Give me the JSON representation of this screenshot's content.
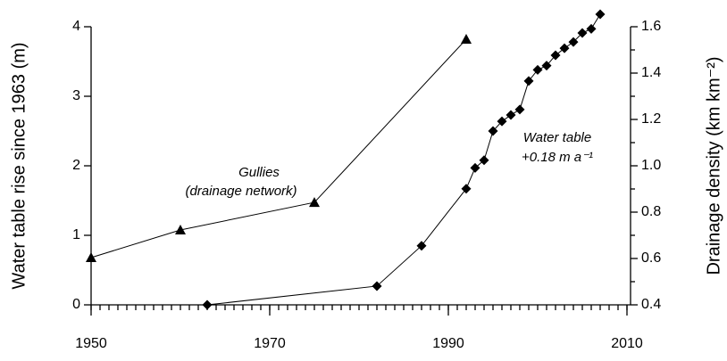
{
  "chart_data": {
    "type": "line",
    "y_label": "Water table rise since 1963 (m)",
    "y2_label": "Drainage density (km km⁻²)",
    "annotations": [
      "Gullies",
      "(drainage network)",
      "Water table",
      "+0.18 m a⁻¹"
    ],
    "xlim": [
      1950,
      2010.4
    ],
    "xticks": [
      1950,
      1970,
      1990,
      2010
    ],
    "ylim": [
      0,
      4
    ],
    "yticks": [
      0,
      1,
      2,
      3,
      4
    ],
    "y2lim": [
      0.4,
      1.6
    ],
    "y2ticks": [
      {
        "value": 0.4,
        "label": "0.4"
      },
      {
        "value": 0.6,
        "label": "0.6"
      },
      {
        "value": 0.8,
        "label": "0.8"
      },
      {
        "value": 1.0,
        "label": "1.0"
      },
      {
        "value": 1.2,
        "label": "1.2"
      },
      {
        "value": 1.4,
        "label": "1.4"
      },
      {
        "value": 1.6,
        "label": "1.6"
      }
    ],
    "series": [
      {
        "marker": "diamond",
        "color": "#000000",
        "x": [
          1963,
          1982,
          1987,
          1992,
          1993,
          1994,
          1995,
          1996,
          1997,
          1998,
          1999,
          2000,
          2001,
          2002,
          2003,
          2004,
          2005,
          2006,
          2007
        ],
        "values": [
          0,
          0.27,
          0.85,
          1.67,
          1.97,
          2.08,
          2.5,
          2.64,
          2.73,
          2.81,
          3.22,
          3.38,
          3.44,
          3.59,
          3.69,
          3.78,
          3.91,
          3.97,
          4.18
        ]
      },
      {
        "marker": "triangle",
        "color": "#000000",
        "axis": "y2",
        "x": [
          1950,
          1960,
          1975,
          1992
        ],
        "values": [
          0.604,
          0.723,
          0.842,
          1.546
        ]
      }
    ]
  }
}
